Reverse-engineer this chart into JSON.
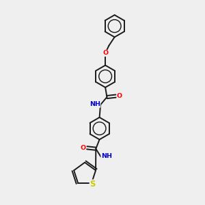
{
  "background_color": "#efefef",
  "bond_color": "#1a1a1a",
  "bond_width": 1.4,
  "atom_colors": {
    "O": "#ff0000",
    "N": "#0000cd",
    "S": "#cccc00",
    "C": "#1a1a1a"
  },
  "font_size": 6.8,
  "ring_r": 0.55,
  "scale": 1.0
}
